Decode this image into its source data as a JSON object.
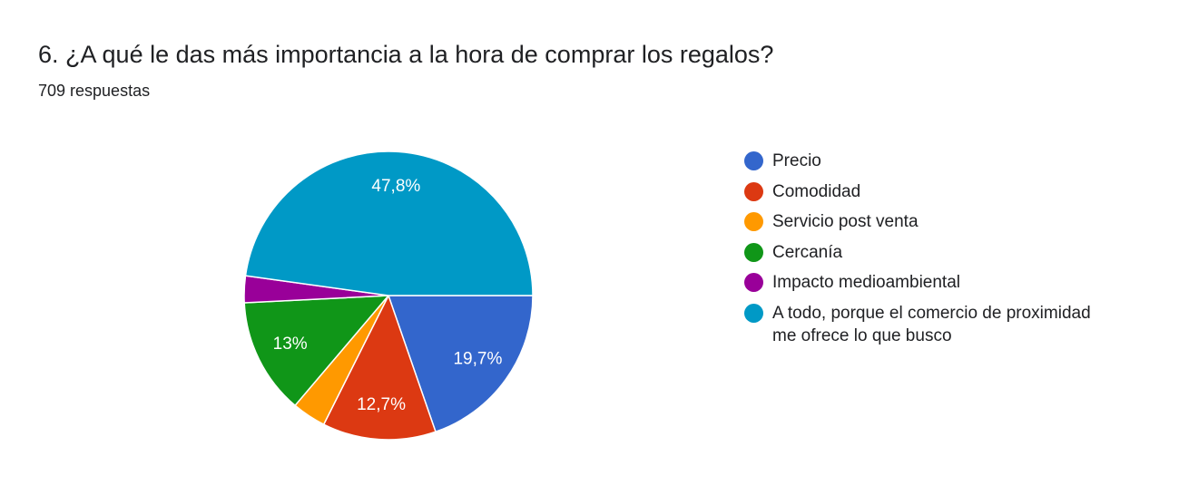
{
  "header": {
    "title": "6. ¿A qué le das más importancia a la hora de comprar los regalos?",
    "response_count": "709 respuestas"
  },
  "chart_data": {
    "type": "pie",
    "title": "6. ¿A qué le das más importancia a la hora de comprar los regalos?",
    "categories": [
      "Precio",
      "Comodidad",
      "Servicio post venta",
      "Cercanía",
      "Impacto medioambiental",
      "A todo, porque el comercio de proximidad me ofrece lo que busco"
    ],
    "values": [
      19.7,
      12.7,
      3.8,
      13.0,
      3.0,
      47.8
    ],
    "value_labels": [
      "19,7%",
      "12,7%",
      "",
      "13%",
      "",
      "47,8%"
    ],
    "colors": [
      "#3366cc",
      "#dc3912",
      "#ff9900",
      "#109618",
      "#990099",
      "#0099c6"
    ],
    "start_direction": "right",
    "legend_position": "right"
  }
}
